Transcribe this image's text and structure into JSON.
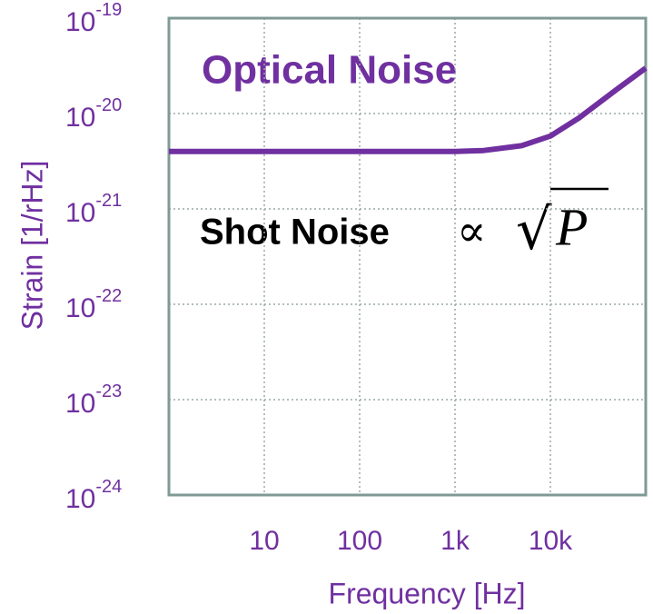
{
  "chart_data": {
    "type": "line",
    "title": "Optical Noise",
    "xlabel": "Frequency [Hz]",
    "ylabel": "Strain [1/rHz]",
    "annotations": [
      "Shot Noise",
      "∝"
    ],
    "formula": {
      "root": "√",
      "symbol": "P"
    },
    "x": [
      1,
      10,
      100,
      1000,
      2000,
      5000,
      10000,
      20000,
      50000,
      100000
    ],
    "values": [
      4e-21,
      4e-21,
      4e-21,
      4e-21,
      4.1e-21,
      4.6e-21,
      5.8e-21,
      9e-21,
      1.8e-20,
      3e-20
    ],
    "color": "#7030a0",
    "xlog": true,
    "ylog": true,
    "xlim": [
      1,
      100000
    ],
    "ylim": [
      1e-24,
      1e-19
    ],
    "xticks": [
      10,
      100,
      {
        "value": 1000,
        "label": "1k"
      },
      {
        "value": 10000,
        "label": "10k"
      }
    ],
    "yticks": [
      {
        "value": 1e-24,
        "label": "10",
        "exponent": "-24"
      },
      {
        "value": 1e-23,
        "label": "10",
        "exponent": "-23"
      },
      {
        "value": 1e-22,
        "label": "10",
        "exponent": "-22"
      },
      {
        "value": 1e-21,
        "label": "10",
        "exponent": "-21"
      },
      {
        "value": 1e-20,
        "label": "10",
        "exponent": "-20"
      },
      {
        "value": 1e-19,
        "label": "10",
        "exponent": "-19"
      }
    ],
    "grid": true
  }
}
